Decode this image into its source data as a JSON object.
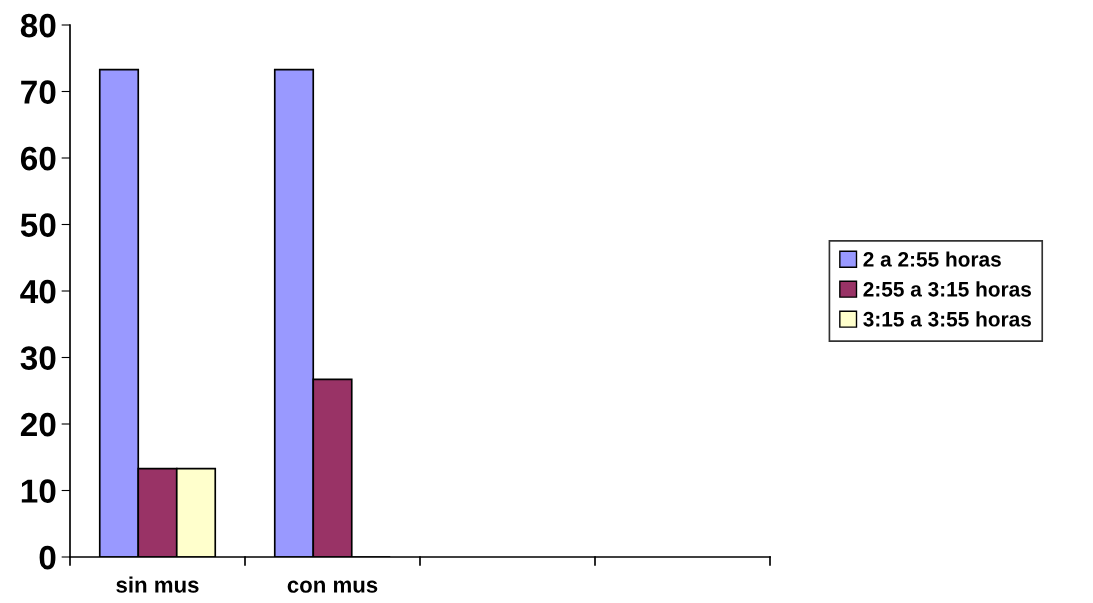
{
  "chart_data": {
    "type": "bar",
    "categories": [
      "sin mus",
      "con mus",
      null,
      null
    ],
    "series": [
      {
        "name": "2 a 2:55 horas",
        "color": "#9999ff",
        "values": [
          73.3,
          73.3,
          null,
          null
        ]
      },
      {
        "name": "2:55 a 3:15 horas",
        "color": "#993366",
        "values": [
          13.3,
          26.7,
          null,
          null
        ]
      },
      {
        "name": "3:15 a 3:55 horas",
        "color": "#ffffcc",
        "values": [
          13.3,
          0,
          null,
          null
        ]
      }
    ],
    "ylim": [
      0,
      80
    ],
    "yticks": [
      0,
      10,
      20,
      30,
      40,
      50,
      60,
      70,
      80
    ],
    "grid": false,
    "legend": "right"
  }
}
